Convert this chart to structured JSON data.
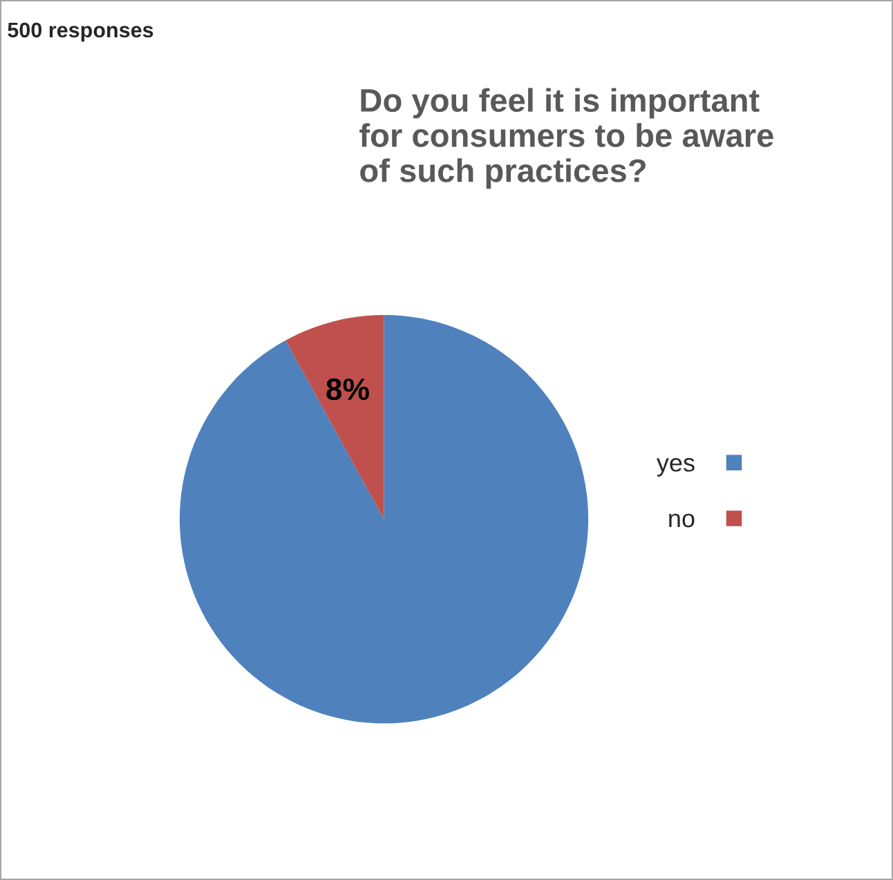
{
  "chart_data": {
    "type": "pie",
    "title": "Do you feel it is important\nfor consumers to be aware\nof such practices?",
    "annotations": [
      "500 responses"
    ],
    "categories": [
      "yes",
      "no"
    ],
    "values": [
      92,
      8
    ],
    "colors": [
      "#4f81bd",
      "#c0504d"
    ],
    "value_labels": [
      null,
      "8%"
    ],
    "legend": "right"
  }
}
